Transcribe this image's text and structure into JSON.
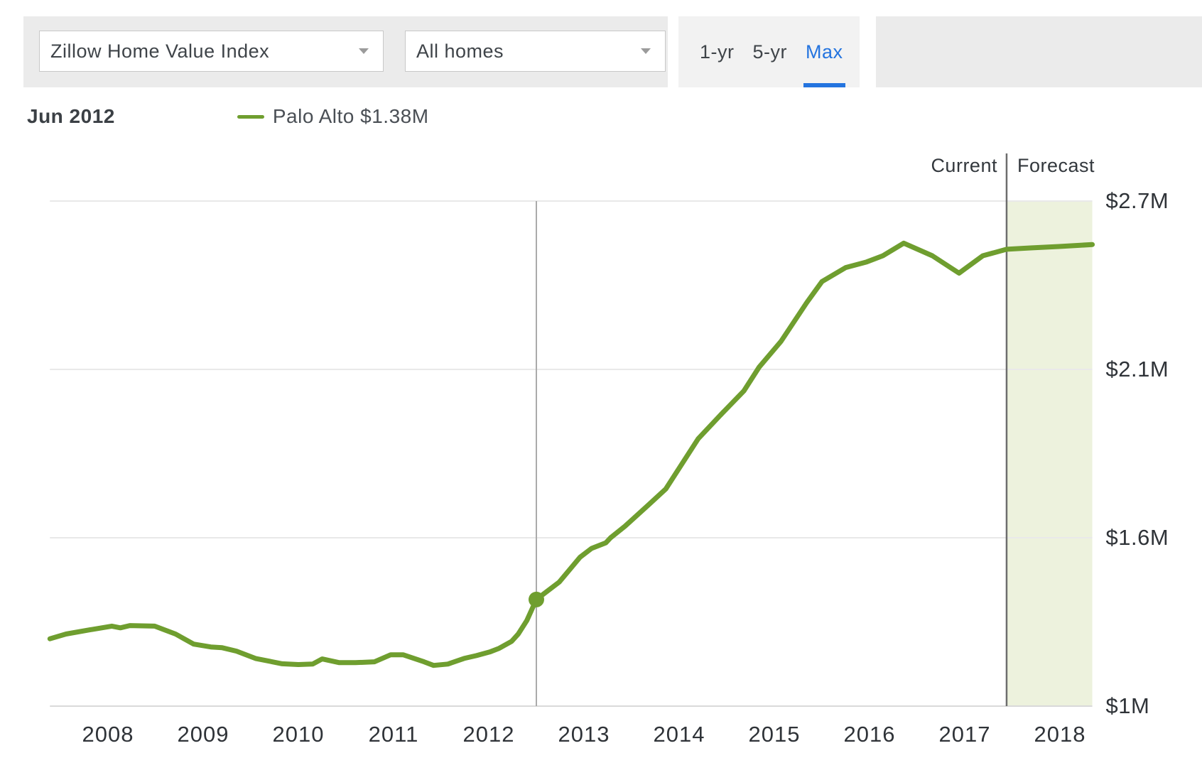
{
  "toolbar": {
    "metric_dropdown": {
      "value": "Zillow Home Value Index"
    },
    "segment_dropdown": {
      "value": "All homes"
    },
    "range_tabs": [
      {
        "label": "1-yr",
        "active": false
      },
      {
        "label": "5-yr",
        "active": false
      },
      {
        "label": "Max",
        "active": true
      }
    ],
    "accent_color": "#2474df"
  },
  "legend": {
    "date": "Jun 2012",
    "series_label": "Palo Alto $1.38M"
  },
  "annotations": {
    "current_label": "Current",
    "forecast_label": "Forecast"
  },
  "chart_data": {
    "type": "line",
    "title": "Zillow Home Value Index — Palo Alto — All homes (Max range)",
    "xlabel": "Year",
    "ylabel": "Home value (millions USD)",
    "grid": "horizontal-only",
    "legend_position": "top-left",
    "x_range": [
      2007.39,
      2018.34
    ],
    "x_ticks": [
      2008,
      2009,
      2010,
      2011,
      2012,
      2013,
      2014,
      2015,
      2016,
      2017,
      2018
    ],
    "y_ticks": [
      {
        "label": "$1M",
        "value": 1.0
      },
      {
        "label": "$1.6M",
        "value": 1.6
      },
      {
        "label": "$2.1M",
        "value": 2.1
      },
      {
        "label": "$2.7M",
        "value": 2.7
      }
    ],
    "cursor": {
      "x": 2012.5,
      "value": 1.38,
      "label": "Jun 2012",
      "display": "$1.38M"
    },
    "forecast_start_x": 2017.44,
    "forecast_fill": "#edf2dd",
    "series": [
      {
        "name": "Palo Alto",
        "color": "#6f9e2f",
        "points": [
          [
            2007.39,
            1.24
          ],
          [
            2007.56,
            1.257
          ],
          [
            2007.81,
            1.272
          ],
          [
            2008.04,
            1.285
          ],
          [
            2008.13,
            1.279
          ],
          [
            2008.23,
            1.287
          ],
          [
            2008.49,
            1.285
          ],
          [
            2008.71,
            1.257
          ],
          [
            2008.9,
            1.221
          ],
          [
            2009.08,
            1.211
          ],
          [
            2009.2,
            1.208
          ],
          [
            2009.35,
            1.196
          ],
          [
            2009.55,
            1.17
          ],
          [
            2009.83,
            1.151
          ],
          [
            2010.0,
            1.148
          ],
          [
            2010.15,
            1.15
          ],
          [
            2010.25,
            1.168
          ],
          [
            2010.43,
            1.155
          ],
          [
            2010.6,
            1.155
          ],
          [
            2010.8,
            1.158
          ],
          [
            2010.97,
            1.183
          ],
          [
            2011.1,
            1.183
          ],
          [
            2011.32,
            1.158
          ],
          [
            2011.42,
            1.145
          ],
          [
            2011.57,
            1.15
          ],
          [
            2011.74,
            1.17
          ],
          [
            2011.87,
            1.18
          ],
          [
            2012.01,
            1.193
          ],
          [
            2012.11,
            1.206
          ],
          [
            2012.24,
            1.231
          ],
          [
            2012.31,
            1.257
          ],
          [
            2012.4,
            1.305
          ],
          [
            2012.5,
            1.38
          ],
          [
            2012.74,
            1.442
          ],
          [
            2012.96,
            1.531
          ],
          [
            2013.08,
            1.562
          ],
          [
            2013.23,
            1.582
          ],
          [
            2013.28,
            1.6
          ],
          [
            2013.43,
            1.634
          ],
          [
            2013.68,
            1.698
          ],
          [
            2013.86,
            1.745
          ],
          [
            2014.2,
            1.894
          ],
          [
            2014.46,
            1.972
          ],
          [
            2014.68,
            2.036
          ],
          [
            2014.84,
            2.108
          ],
          [
            2015.07,
            2.2
          ],
          [
            2015.34,
            2.338
          ],
          [
            2015.5,
            2.413
          ],
          [
            2015.75,
            2.463
          ],
          [
            2015.97,
            2.483
          ],
          [
            2016.14,
            2.505
          ],
          [
            2016.36,
            2.55
          ],
          [
            2016.66,
            2.505
          ],
          [
            2016.94,
            2.443
          ],
          [
            2017.19,
            2.505
          ],
          [
            2017.44,
            2.528
          ],
          [
            2017.69,
            2.533
          ],
          [
            2017.99,
            2.538
          ],
          [
            2018.2,
            2.542
          ],
          [
            2018.34,
            2.545
          ]
        ]
      }
    ]
  }
}
